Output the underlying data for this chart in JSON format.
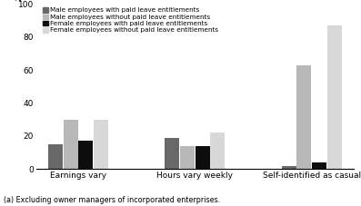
{
  "groups": [
    "Earnings vary",
    "Hours vary weekly",
    "Self-identified as casual"
  ],
  "bar_labels": [
    "Male with paid leave",
    "Male without paid leave",
    "Female with paid leave",
    "Female without paid leave"
  ],
  "legend_labels": [
    "Male employees with paid leave entitlements",
    "Male employees without paid leave entitlements",
    "Female employees with paid leave entitlements",
    "Female employees without paid leave entitlements"
  ],
  "legend_colors": [
    "#686868",
    "#b8b8b8",
    "#0d0d0d",
    "#d8d8d8"
  ],
  "bar_colors": [
    "#686868",
    "#b8b8b8",
    "#0d0d0d",
    "#d8d8d8"
  ],
  "values": [
    [
      15,
      19,
      2
    ],
    [
      30,
      14,
      63
    ],
    [
      17,
      14,
      4
    ],
    [
      30,
      22,
      87
    ]
  ],
  "group_centers": [
    0.0,
    1.05,
    2.1
  ],
  "bar_width": 0.13,
  "bar_offsets": [
    -0.205,
    -0.068,
    0.068,
    0.205
  ],
  "ylabel": "%",
  "ylim": [
    0,
    100
  ],
  "yticks": [
    0,
    20,
    40,
    60,
    80,
    100
  ],
  "footnote": "(a) Excluding owner managers of incorporated enterprises."
}
